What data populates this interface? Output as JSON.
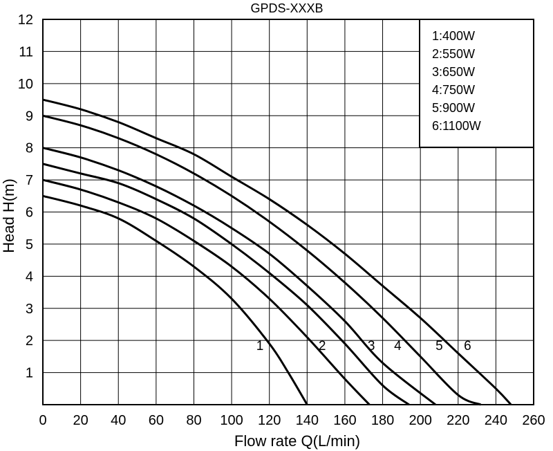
{
  "chart_data": {
    "type": "line",
    "title": "GPDS-XXXB",
    "xlabel": "Flow rate Q(L/min)",
    "ylabel": "Head H(m)",
    "xlim": [
      0,
      260
    ],
    "ylim": [
      0,
      12
    ],
    "xticks": [
      "0",
      "20",
      "40",
      "60",
      "80",
      "100",
      "120",
      "140",
      "160",
      "180",
      "200",
      "220",
      "240",
      "260"
    ],
    "yticks": [
      "1",
      "2",
      "3",
      "4",
      "5",
      "6",
      "7",
      "8",
      "9",
      "10",
      "11",
      "12"
    ],
    "grid": true,
    "legend_position": "top-right",
    "legend": [
      "1:400W",
      "2:550W",
      "3:650W",
      "4:750W",
      "5:900W",
      "6:1100W"
    ],
    "series": [
      {
        "name": "1",
        "values": [
          [
            0,
            6.5
          ],
          [
            20,
            6.2
          ],
          [
            40,
            5.8
          ],
          [
            60,
            5.1
          ],
          [
            80,
            4.3
          ],
          [
            100,
            3.3
          ],
          [
            120,
            1.9
          ],
          [
            130,
            1.0
          ],
          [
            140,
            0.0
          ]
        ]
      },
      {
        "name": "2",
        "values": [
          [
            0,
            7.0
          ],
          [
            20,
            6.7
          ],
          [
            40,
            6.3
          ],
          [
            60,
            5.8
          ],
          [
            80,
            5.1
          ],
          [
            100,
            4.3
          ],
          [
            120,
            3.3
          ],
          [
            140,
            2.1
          ],
          [
            160,
            0.8
          ],
          [
            173,
            0.0
          ]
        ]
      },
      {
        "name": "3",
        "values": [
          [
            0,
            7.5
          ],
          [
            20,
            7.2
          ],
          [
            40,
            6.9
          ],
          [
            60,
            6.4
          ],
          [
            80,
            5.8
          ],
          [
            100,
            5.0
          ],
          [
            120,
            4.1
          ],
          [
            140,
            3.1
          ],
          [
            160,
            1.9
          ],
          [
            180,
            0.6
          ],
          [
            194,
            0.0
          ]
        ]
      },
      {
        "name": "4",
        "values": [
          [
            0,
            8.0
          ],
          [
            20,
            7.7
          ],
          [
            40,
            7.3
          ],
          [
            60,
            6.8
          ],
          [
            80,
            6.2
          ],
          [
            100,
            5.5
          ],
          [
            120,
            4.7
          ],
          [
            140,
            3.7
          ],
          [
            160,
            2.6
          ],
          [
            180,
            1.3
          ],
          [
            208,
            0.0
          ]
        ]
      },
      {
        "name": "5",
        "values": [
          [
            0,
            9.0
          ],
          [
            20,
            8.7
          ],
          [
            40,
            8.3
          ],
          [
            60,
            7.8
          ],
          [
            80,
            7.2
          ],
          [
            100,
            6.5
          ],
          [
            120,
            5.7
          ],
          [
            140,
            4.8
          ],
          [
            160,
            3.8
          ],
          [
            180,
            2.7
          ],
          [
            200,
            1.5
          ],
          [
            220,
            0.3
          ],
          [
            232,
            0.0
          ]
        ]
      },
      {
        "name": "6",
        "values": [
          [
            0,
            9.5
          ],
          [
            20,
            9.2
          ],
          [
            40,
            8.8
          ],
          [
            60,
            8.3
          ],
          [
            80,
            7.8
          ],
          [
            100,
            7.1
          ],
          [
            120,
            6.4
          ],
          [
            140,
            5.6
          ],
          [
            160,
            4.7
          ],
          [
            180,
            3.7
          ],
          [
            200,
            2.7
          ],
          [
            220,
            1.6
          ],
          [
            240,
            0.5
          ],
          [
            248,
            0.0
          ]
        ]
      }
    ],
    "curve_labels": [
      {
        "text": "1",
        "x": 115,
        "y": 1.7
      },
      {
        "text": "2",
        "x": 148,
        "y": 1.7
      },
      {
        "text": "3",
        "x": 174,
        "y": 1.7
      },
      {
        "text": "4",
        "x": 188,
        "y": 1.7
      },
      {
        "text": "5",
        "x": 210,
        "y": 1.7
      },
      {
        "text": "6",
        "x": 225,
        "y": 1.7
      }
    ],
    "colors": {
      "line": "#000000",
      "grid": "#000000",
      "background": "#ffffff"
    }
  }
}
